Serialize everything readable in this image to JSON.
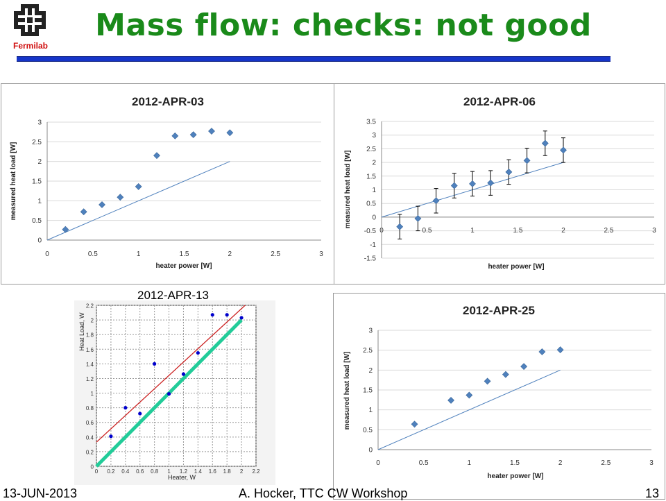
{
  "slide": {
    "title": "Mass flow: checks: not good",
    "logo_text": "Fermilab",
    "footer_date": "13-JUN-2013",
    "footer_author": "A. Hocker, TTC CW Workshop",
    "footer_page": "13",
    "rule_color": "#1535c9",
    "title_color": "#1a8a1a"
  },
  "chart_data": [
    {
      "type": "scatter",
      "title": "2012-APR-03",
      "xlabel": "heater power [W]",
      "ylabel": "measured heat load [W]",
      "xlim": [
        0,
        3
      ],
      "ylim": [
        0,
        3
      ],
      "xticks": [
        "0",
        "0.5",
        "1",
        "1.5",
        "2",
        "2.5",
        "3"
      ],
      "yticks": [
        "0",
        "0.5",
        "1",
        "1.5",
        "2",
        "2.5",
        "3"
      ],
      "grid": true,
      "marker_color": "#4f81bd",
      "points": [
        {
          "x": 0.2,
          "y": 0.27
        },
        {
          "x": 0.4,
          "y": 0.72
        },
        {
          "x": 0.6,
          "y": 0.9
        },
        {
          "x": 0.8,
          "y": 1.09
        },
        {
          "x": 1.0,
          "y": 1.36
        },
        {
          "x": 1.2,
          "y": 2.15
        },
        {
          "x": 1.4,
          "y": 2.65
        },
        {
          "x": 1.6,
          "y": 2.68
        },
        {
          "x": 1.8,
          "y": 2.77
        },
        {
          "x": 2.0,
          "y": 2.73
        }
      ],
      "reference_line": [
        [
          0,
          0
        ],
        [
          2,
          2
        ]
      ]
    },
    {
      "type": "scatter",
      "title": "2012-APR-06",
      "xlabel": "heater power [W]",
      "ylabel": "measured heat load [W]",
      "xlim": [
        0,
        3
      ],
      "ylim": [
        -1.5,
        3.5
      ],
      "xticks": [
        "0",
        "0.5",
        "1",
        "1.5",
        "2",
        "2.5",
        "3"
      ],
      "yticks": [
        "-1.5",
        "-1",
        "-0.5",
        "0",
        "0.5",
        "1",
        "1.5",
        "2",
        "2.5",
        "3",
        "3.5"
      ],
      "grid": true,
      "marker_color": "#4f81bd",
      "points": [
        {
          "x": 0.2,
          "y": -0.35,
          "err": 0.45
        },
        {
          "x": 0.4,
          "y": -0.05,
          "err": 0.45
        },
        {
          "x": 0.6,
          "y": 0.6,
          "err": 0.45
        },
        {
          "x": 0.8,
          "y": 1.15,
          "err": 0.45
        },
        {
          "x": 1.0,
          "y": 1.22,
          "err": 0.45
        },
        {
          "x": 1.2,
          "y": 1.25,
          "err": 0.45
        },
        {
          "x": 1.4,
          "y": 1.65,
          "err": 0.45
        },
        {
          "x": 1.6,
          "y": 2.07,
          "err": 0.45
        },
        {
          "x": 1.8,
          "y": 2.7,
          "err": 0.45
        },
        {
          "x": 2.0,
          "y": 2.45,
          "err": 0.45
        }
      ],
      "reference_line": [
        [
          0,
          0
        ],
        [
          2,
          2
        ]
      ]
    },
    {
      "type": "scatter",
      "title": "2012-APR-13",
      "xlabel": "Heater, W",
      "ylabel": "Heat Load, W",
      "xlim": [
        0,
        2.2
      ],
      "ylim": [
        0,
        2.2
      ],
      "xticks": [
        "0",
        "0.2",
        "0.4",
        "0.6",
        "0.8",
        "1",
        "1.2",
        "1.4",
        "1.6",
        "1.8",
        "2",
        "2.2"
      ],
      "yticks": [
        "0",
        "0.2",
        "0.4",
        "0.6",
        "0.8",
        "1",
        "1.2",
        "1.4",
        "1.6",
        "1.8",
        "2",
        "2.2"
      ],
      "grid": true,
      "marker_color": "#0000cc",
      "points": [
        {
          "x": 0.2,
          "y": 0.41
        },
        {
          "x": 0.4,
          "y": 0.8
        },
        {
          "x": 0.6,
          "y": 0.72
        },
        {
          "x": 0.8,
          "y": 1.4
        },
        {
          "x": 1.0,
          "y": 0.99
        },
        {
          "x": 1.2,
          "y": 1.26
        },
        {
          "x": 1.4,
          "y": 1.55
        },
        {
          "x": 1.6,
          "y": 2.07
        },
        {
          "x": 1.8,
          "y": 2.07
        },
        {
          "x": 2.0,
          "y": 2.03
        }
      ],
      "fit_line": {
        "color": "#cc2222",
        "from": [
          0,
          0.33
        ],
        "to": [
          2.05,
          2.2
        ]
      },
      "reference_line": {
        "color": "#22cc99",
        "from": [
          0,
          0
        ],
        "to": [
          2.0,
          2.0
        ]
      }
    },
    {
      "type": "scatter",
      "title": "2012-APR-25",
      "xlabel": "heater power [W]",
      "ylabel": "measured heat load [W]",
      "xlim": [
        0,
        3
      ],
      "ylim": [
        0,
        3
      ],
      "xticks": [
        "0",
        "0.5",
        "1",
        "1.5",
        "2",
        "2.5",
        "3"
      ],
      "yticks": [
        "0",
        "0.5",
        "1",
        "1.5",
        "2",
        "2.5",
        "3"
      ],
      "grid": true,
      "marker_color": "#4f81bd",
      "points": [
        {
          "x": 0.4,
          "y": 0.64
        },
        {
          "x": 0.8,
          "y": 1.24
        },
        {
          "x": 1.0,
          "y": 1.37
        },
        {
          "x": 1.2,
          "y": 1.72
        },
        {
          "x": 1.4,
          "y": 1.89
        },
        {
          "x": 1.6,
          "y": 2.09
        },
        {
          "x": 1.8,
          "y": 2.46
        },
        {
          "x": 2.0,
          "y": 2.51
        }
      ],
      "reference_line": [
        [
          0,
          0
        ],
        [
          2,
          2
        ]
      ]
    }
  ]
}
